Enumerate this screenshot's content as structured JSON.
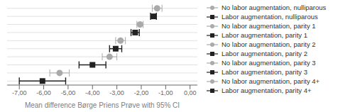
{
  "chart_data": {
    "type": "forest",
    "xlabel": "Mean difference Børge Priens Prøve with 95% CI",
    "xlim": [
      -7.5,
      0.3
    ],
    "xticks": [
      {
        "value": -7.0,
        "label": "-7,00"
      },
      {
        "value": -6.0,
        "label": "-6,00"
      },
      {
        "value": -5.0,
        "label": "-5,00"
      },
      {
        "value": -4.0,
        "label": "-4,00"
      },
      {
        "value": -3.0,
        "label": "-3,00"
      },
      {
        "value": -2.0,
        "label": "-2,00"
      },
      {
        "value": -1.0,
        "label": "-1,00"
      },
      {
        "value": 0.0,
        "label": "0,00"
      }
    ],
    "grid": true,
    "legend": "right",
    "tick_labels": "x",
    "series": [
      {
        "name": "No labor augmentation, nulliparous",
        "color": "#aaaaaa",
        "marker": "circle",
        "values": [
          -1.35
        ],
        "ci_low": [
          -1.55
        ],
        "ci_high": [
          -1.15
        ]
      },
      {
        "name": "Labor augmentation, nulliparous",
        "color": "#222222",
        "marker": "square",
        "values": [
          -1.5
        ],
        "ci_low": [
          -1.62
        ],
        "ci_high": [
          -1.38
        ]
      },
      {
        "name": "No labor augmentation, parity 1",
        "color": "#aaaaaa",
        "marker": "circle",
        "values": [
          -2.05
        ],
        "ci_low": [
          -2.18
        ],
        "ci_high": [
          -1.92
        ]
      },
      {
        "name": "Labor augmentation, parity 1",
        "color": "#222222",
        "marker": "square",
        "values": [
          -2.25
        ],
        "ci_low": [
          -2.42
        ],
        "ci_high": [
          -2.08
        ]
      },
      {
        "name": "No labor augmentation, parity 2",
        "color": "#aaaaaa",
        "marker": "circle",
        "values": [
          -2.85
        ],
        "ci_low": [
          -3.05
        ],
        "ci_high": [
          -2.65
        ]
      },
      {
        "name": "Labor augmentation, parity 2",
        "color": "#222222",
        "marker": "square",
        "values": [
          -3.05
        ],
        "ci_low": [
          -3.3
        ],
        "ci_high": [
          -2.8
        ]
      },
      {
        "name": "No labor augmentation, parity 3",
        "color": "#aaaaaa",
        "marker": "circle",
        "values": [
          -3.3
        ],
        "ci_low": [
          -3.6
        ],
        "ci_high": [
          -3.0
        ]
      },
      {
        "name": "Labor augmentation, parity 3",
        "color": "#222222",
        "marker": "square",
        "values": [
          -4.0
        ],
        "ci_low": [
          -4.55
        ],
        "ci_high": [
          -3.45
        ]
      },
      {
        "name": "No labor augmentation, parity 4+",
        "color": "#aaaaaa",
        "marker": "circle",
        "values": [
          -5.35
        ],
        "ci_low": [
          -5.75
        ],
        "ci_high": [
          -4.95
        ]
      },
      {
        "name": "Labor augmentation, parity 4+",
        "color": "#222222",
        "marker": "square",
        "values": [
          -6.05
        ],
        "ci_low": [
          -7.0
        ],
        "ci_high": [
          -5.1
        ]
      }
    ]
  }
}
